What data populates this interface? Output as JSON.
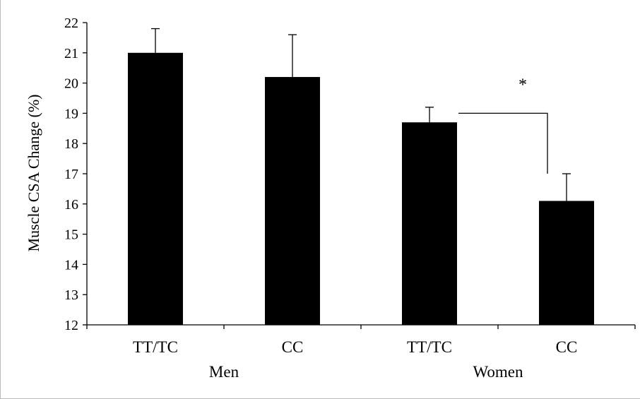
{
  "chart_data": {
    "type": "bar",
    "categories": [
      "TT/TC",
      "CC",
      "TT/TC",
      "CC"
    ],
    "groups": [
      {
        "label": "Men",
        "categories": [
          "TT/TC",
          "CC"
        ]
      },
      {
        "label": "Women",
        "categories": [
          "TT/TC",
          "CC"
        ]
      }
    ],
    "series": [
      {
        "values": [
          21.0,
          20.2,
          18.7,
          16.1
        ],
        "error_plus": [
          0.8,
          1.4,
          0.5,
          0.9
        ]
      }
    ],
    "ylabel": "Muscle CSA Change (%)",
    "xlabel": "",
    "ylim": [
      12,
      22
    ],
    "yticks": [
      12,
      13,
      14,
      15,
      16,
      17,
      18,
      19,
      20,
      21,
      22
    ],
    "grid": false,
    "legend": "none",
    "bar_color": "#000000",
    "annotations": [
      {
        "text": "*",
        "type": "significance-bracket",
        "between": [
          2,
          3
        ],
        "level": 19.0,
        "to": 17.0
      }
    ]
  }
}
